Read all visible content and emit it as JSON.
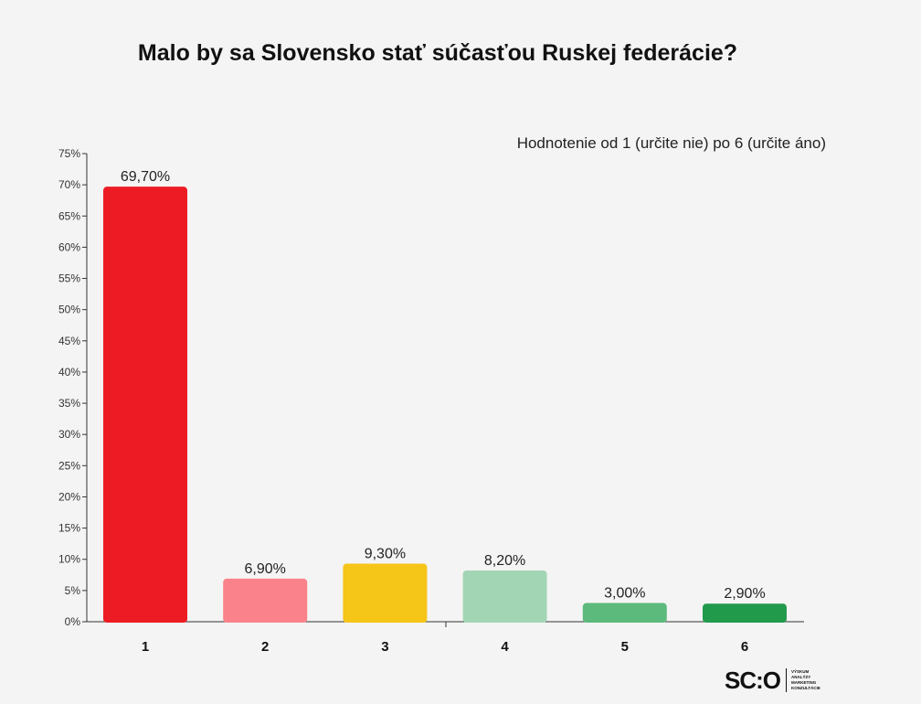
{
  "chart_data": {
    "type": "bar",
    "title": "Malo by sa Slovensko stať súčasťou Ruskej federácie?",
    "subtitle": "Hodnotenie  od 1 (určite nie) po 6 (určite áno)",
    "categories": [
      "1",
      "2",
      "3",
      "4",
      "5",
      "6"
    ],
    "values": [
      69.7,
      6.9,
      9.3,
      8.2,
      3.0,
      2.9
    ],
    "value_labels": [
      "69,70%",
      "6,90%",
      "9,30%",
      "8,20%",
      "3,00%",
      "2,90%"
    ],
    "colors": [
      "#ed1c24",
      "#fa828a",
      "#f5c518",
      "#a2d5b4",
      "#5cba7c",
      "#229a4c"
    ],
    "ylim": [
      0,
      75
    ],
    "yticks": [
      0,
      5,
      10,
      15,
      20,
      25,
      30,
      35,
      40,
      45,
      50,
      55,
      60,
      65,
      70,
      75
    ],
    "ytick_labels": [
      "0%",
      "5%",
      "10%",
      "15%",
      "20%",
      "25%",
      "30%",
      "35%",
      "40%",
      "45%",
      "50%",
      "55%",
      "60%",
      "65%",
      "70%",
      "75%"
    ],
    "xlabel": "",
    "ylabel": "",
    "grid": false,
    "legend": "none"
  },
  "logo": {
    "text": "SC:O",
    "tagline": [
      "VÝSKUM",
      "ANALÝZY",
      "MARKETING",
      "KONZULTÁCIE"
    ]
  }
}
